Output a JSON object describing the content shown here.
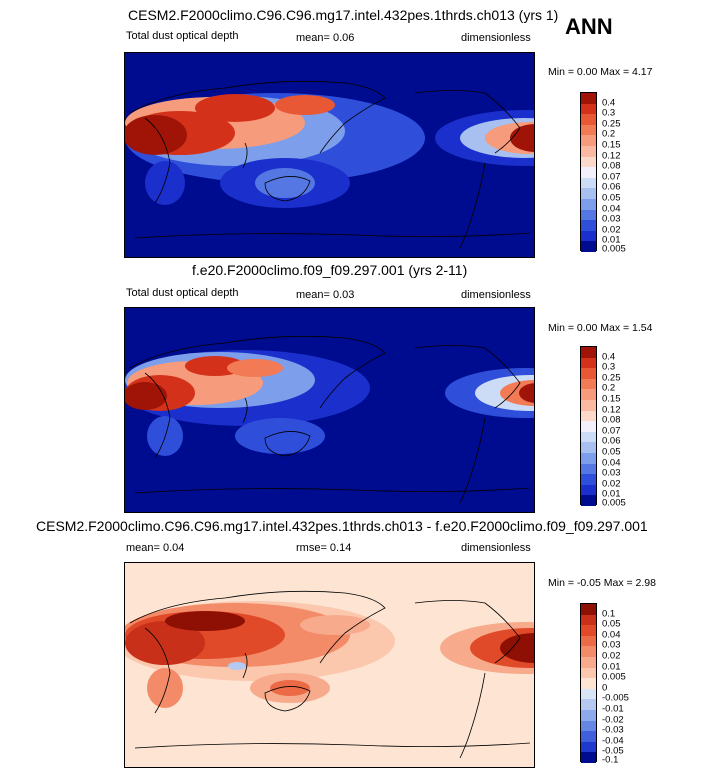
{
  "season": "ANN",
  "panels": [
    {
      "title": "CESM2.F2000climo.C96.C96.mg17.intel.432pes.1thrds.ch013 (yrs 1)",
      "variable": "Total dust optical depth",
      "mean": "mean=  0.06",
      "units": "dimensionless",
      "minmax": "Min =   0.00  Max =   4.17",
      "levels": [
        "0.4",
        "0.3",
        "0.25",
        "0.2",
        "0.15",
        "0.12",
        "0.08",
        "0.07",
        "0.06",
        "0.05",
        "0.04",
        "0.03",
        "0.02",
        "0.01",
        "0.005"
      ],
      "colors": [
        "#a01408",
        "#d3311a",
        "#e85834",
        "#f27a55",
        "#f69b7b",
        "#fab9a0",
        "#fcd9c8",
        "#f3f0fc",
        "#cddcf6",
        "#a7c0f0",
        "#7d9eea",
        "#5577e4",
        "#2f4fdb",
        "#1a2fcb",
        "#000c8f"
      ]
    },
    {
      "title": "f.e20.F2000climo.f09_f09.297.001 (yrs 2-11)",
      "variable": "Total dust optical depth",
      "mean": "mean=  0.03",
      "units": "dimensionless",
      "minmax": "Min =   0.00  Max =   1.54",
      "levels": [
        "0.4",
        "0.3",
        "0.25",
        "0.2",
        "0.15",
        "0.12",
        "0.08",
        "0.07",
        "0.06",
        "0.05",
        "0.04",
        "0.03",
        "0.02",
        "0.01",
        "0.005"
      ],
      "colors": [
        "#a01408",
        "#d3311a",
        "#e85834",
        "#f27a55",
        "#f69b7b",
        "#fab9a0",
        "#fcd9c8",
        "#f3f0fc",
        "#cddcf6",
        "#a7c0f0",
        "#7d9eea",
        "#5577e4",
        "#2f4fdb",
        "#1a2fcb",
        "#000c8f"
      ]
    },
    {
      "title": "CESM2.F2000climo.C96.C96.mg17.intel.432pes.1thrds.ch013 - f.e20.F2000climo.f09_f09.297.001",
      "mean": "mean=  0.04",
      "rmse": "rmse=  0.14",
      "units": "dimensionless",
      "minmax": "Min =  -0.05  Max =   2.98",
      "levels": [
        "0.1",
        "0.05",
        "0.04",
        "0.03",
        "0.02",
        "0.01",
        "0.005",
        "0",
        "-0.005",
        "-0.01",
        "-0.02",
        "-0.03",
        "-0.04",
        "-0.05",
        "-0.1"
      ],
      "colors": [
        "#8e1004",
        "#c8301a",
        "#e04a28",
        "#ec6a45",
        "#f38b68",
        "#f7ab8c",
        "#fbc8ae",
        "#fde4d3",
        "#d9e4f7",
        "#b5c9f1",
        "#8ea9eb",
        "#6686e4",
        "#3f5fdc",
        "#1f38ce",
        "#000c8f"
      ]
    }
  ]
}
